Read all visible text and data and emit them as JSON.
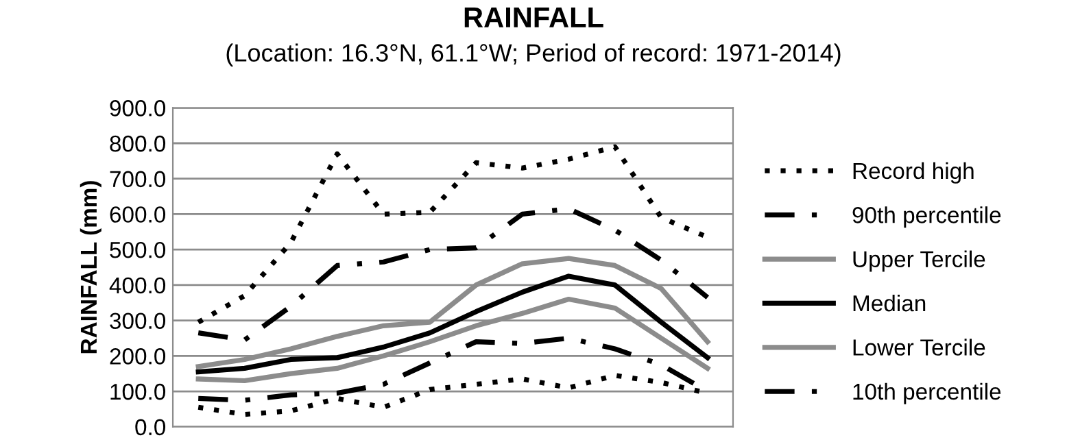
{
  "chart_data": {
    "type": "line",
    "title": "RAINFALL",
    "subtitle": "(Location: 16.3°N, 61.1°W; Period of record: 1971-2014)",
    "ylabel": "RAINFALL (mm)",
    "categories": [
      null,
      null,
      null,
      null,
      null,
      null,
      null,
      null,
      null,
      null,
      null,
      null
    ],
    "series": [
      {
        "name": "Record high",
        "color": "#000000",
        "line_style": "dotted",
        "values": [
          295,
          370,
          520,
          770,
          600,
          605,
          745,
          730,
          755,
          790,
          590,
          535
        ]
      },
      {
        "name": "90th percentile",
        "color": "#000000",
        "line_style": "dashed",
        "values": [
          265,
          245,
          340,
          455,
          465,
          500,
          505,
          600,
          615,
          555,
          470,
          365
        ]
      },
      {
        "name": "Upper Tercile",
        "color": "#8c8c8c",
        "line_style": "solid",
        "values": [
          170,
          190,
          220,
          255,
          285,
          295,
          400,
          460,
          475,
          455,
          390,
          240
        ]
      },
      {
        "name": "Median",
        "color": "#000000",
        "line_style": "solid",
        "values": [
          155,
          165,
          190,
          195,
          225,
          265,
          325,
          380,
          425,
          400,
          295,
          195
        ]
      },
      {
        "name": "Lower Tercile",
        "color": "#8c8c8c",
        "line_style": "solid",
        "values": [
          135,
          130,
          150,
          165,
          200,
          240,
          285,
          320,
          360,
          335,
          250,
          165
        ]
      },
      {
        "name": "10th percentile",
        "color": "#000000",
        "line_style": "dashed",
        "values": [
          80,
          75,
          90,
          95,
          120,
          180,
          240,
          235,
          250,
          220,
          175,
          100
        ]
      },
      {
        "color": "#000000",
        "line_style": "dotted",
        "values": [
          55,
          35,
          45,
          80,
          55,
          105,
          120,
          135,
          110,
          145,
          125,
          95
        ]
      }
    ],
    "ylim": [
      0,
      900
    ],
    "yticks": [
      {
        "value": 0,
        "label": "0.0"
      },
      {
        "value": 100,
        "label": "100.0"
      },
      {
        "value": 200,
        "label": "200.0"
      },
      {
        "value": 300,
        "label": "300.0"
      },
      {
        "value": 400,
        "label": "400.0"
      },
      {
        "value": 500,
        "label": "500.0"
      },
      {
        "value": 600,
        "label": "600.0"
      },
      {
        "value": 700,
        "label": "700.0"
      },
      {
        "value": 800,
        "label": "800.0"
      },
      {
        "value": 900,
        "label": "900.0"
      }
    ],
    "grid": "y",
    "legend": "right",
    "tick_labels": "y",
    "marker": "none"
  }
}
